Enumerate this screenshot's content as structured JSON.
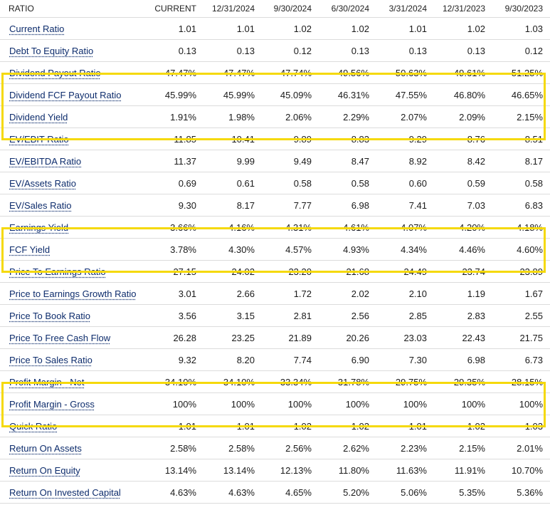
{
  "table": {
    "headers": [
      "RATIO",
      "CURRENT",
      "12/31/2024",
      "9/30/2024",
      "6/30/2024",
      "3/31/2024",
      "12/31/2023",
      "9/30/2023"
    ],
    "rows": [
      {
        "name": "Current Ratio",
        "values": [
          "1.01",
          "1.01",
          "1.02",
          "1.02",
          "1.01",
          "1.02",
          "1.03"
        ]
      },
      {
        "name": "Debt To Equity Ratio",
        "values": [
          "0.13",
          "0.13",
          "0.12",
          "0.13",
          "0.13",
          "0.13",
          "0.12"
        ]
      },
      {
        "name": "Dividend Payout Ratio",
        "values": [
          "47.47%",
          "47.47%",
          "47.74%",
          "49.56%",
          "50.63%",
          "49.61%",
          "51.25%"
        ]
      },
      {
        "name": "Dividend FCF Payout Ratio",
        "values": [
          "45.99%",
          "45.99%",
          "45.09%",
          "46.31%",
          "47.55%",
          "46.80%",
          "46.65%"
        ]
      },
      {
        "name": "Dividend Yield",
        "values": [
          "1.91%",
          "1.98%",
          "2.06%",
          "2.29%",
          "2.07%",
          "2.09%",
          "2.15%"
        ]
      },
      {
        "name": "EV/EBIT Ratio",
        "values": [
          "11.85",
          "10.41",
          "9.89",
          "8.83",
          "9.29",
          "8.76",
          "8.51"
        ]
      },
      {
        "name": "EV/EBITDA Ratio",
        "values": [
          "11.37",
          "9.99",
          "9.49",
          "8.47",
          "8.92",
          "8.42",
          "8.17"
        ]
      },
      {
        "name": "EV/Assets Ratio",
        "values": [
          "0.69",
          "0.61",
          "0.58",
          "0.58",
          "0.60",
          "0.59",
          "0.58"
        ]
      },
      {
        "name": "EV/Sales Ratio",
        "values": [
          "9.30",
          "8.17",
          "7.77",
          "6.98",
          "7.41",
          "7.03",
          "6.83"
        ]
      },
      {
        "name": "Earnings Yield",
        "values": [
          "3.66%",
          "4.16%",
          "4.31%",
          "4.61%",
          "4.07%",
          "4.20%",
          "4.18%"
        ]
      },
      {
        "name": "FCF Yield",
        "values": [
          "3.78%",
          "4.30%",
          "4.57%",
          "4.93%",
          "4.34%",
          "4.46%",
          "4.60%"
        ]
      },
      {
        "name": "Price To Earnings Ratio",
        "values": [
          "27.15",
          "24.02",
          "23.20",
          "21.68",
          "24.49",
          "23.74",
          "23.89"
        ]
      },
      {
        "name": "Price to Earnings Growth Ratio",
        "values": [
          "3.01",
          "2.66",
          "1.72",
          "2.02",
          "2.10",
          "1.19",
          "1.67"
        ]
      },
      {
        "name": "Price To Book Ratio",
        "values": [
          "3.56",
          "3.15",
          "2.81",
          "2.56",
          "2.85",
          "2.83",
          "2.55"
        ]
      },
      {
        "name": "Price To Free Cash Flow",
        "values": [
          "26.28",
          "23.25",
          "21.89",
          "20.26",
          "23.03",
          "22.43",
          "21.75"
        ]
      },
      {
        "name": "Price To Sales Ratio",
        "values": [
          "9.32",
          "8.20",
          "7.74",
          "6.90",
          "7.30",
          "6.98",
          "6.73"
        ]
      },
      {
        "name": "Profit Margin - Net",
        "values": [
          "34.10%",
          "34.10%",
          "33.34%",
          "31.78%",
          "29.75%",
          "29.35%",
          "28.15%"
        ]
      },
      {
        "name": "Profit Margin - Gross",
        "values": [
          "100%",
          "100%",
          "100%",
          "100%",
          "100%",
          "100%",
          "100%"
        ]
      },
      {
        "name": "Quick Ratio",
        "values": [
          "1.01",
          "1.01",
          "1.02",
          "1.02",
          "1.01",
          "1.02",
          "1.03"
        ]
      },
      {
        "name": "Return On Assets",
        "values": [
          "2.58%",
          "2.58%",
          "2.56%",
          "2.62%",
          "2.23%",
          "2.15%",
          "2.01%"
        ]
      },
      {
        "name": "Return On Equity",
        "values": [
          "13.14%",
          "13.14%",
          "12.13%",
          "11.80%",
          "11.63%",
          "11.91%",
          "10.70%"
        ]
      },
      {
        "name": "Return On Invested Capital",
        "values": [
          "4.63%",
          "4.63%",
          "4.65%",
          "5.20%",
          "5.06%",
          "5.35%",
          "5.36%"
        ]
      }
    ]
  },
  "highlights": {
    "color": "#f5d90a",
    "groups": [
      [
        "Dividend Payout Ratio",
        "Dividend FCF Payout Ratio",
        "Dividend Yield"
      ],
      [
        "Earnings Yield",
        "FCF Yield"
      ],
      [
        "Profit Margin - Net",
        "Profit Margin - Gross"
      ]
    ]
  },
  "colors": {
    "link": "#0d2c6c",
    "text": "#1a1a1a",
    "border": "#dcdcdc"
  }
}
